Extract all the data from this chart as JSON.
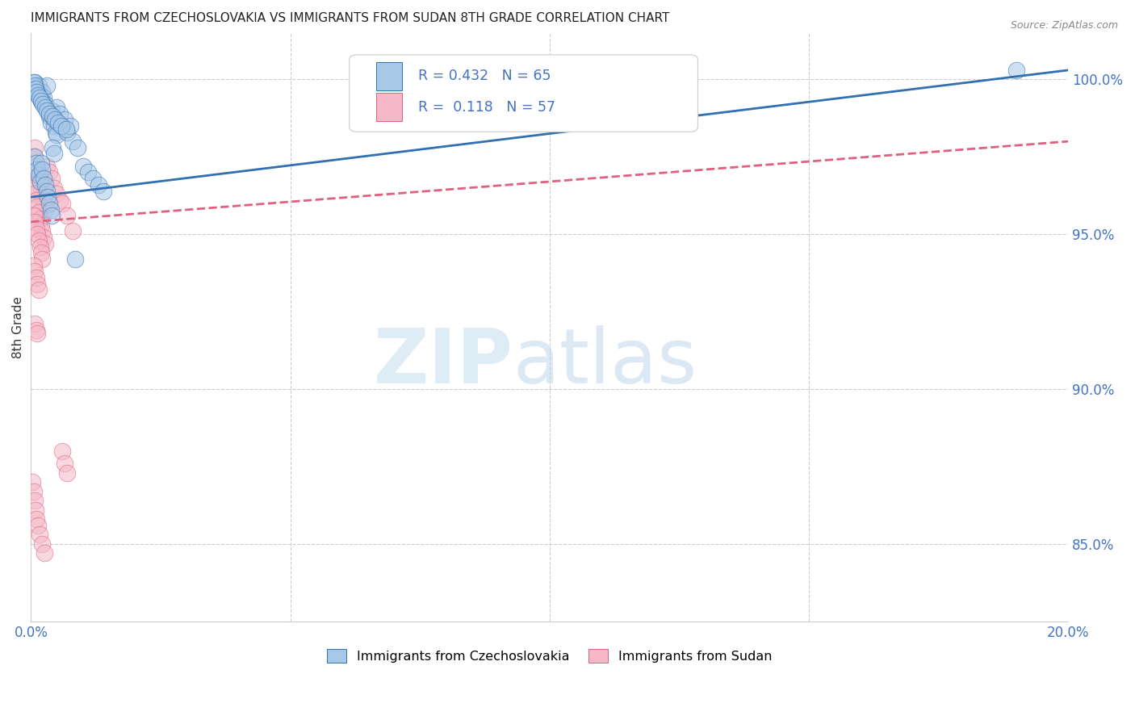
{
  "title": "IMMIGRANTS FROM CZECHOSLOVAKIA VS IMMIGRANTS FROM SUDAN 8TH GRADE CORRELATION CHART",
  "source": "Source: ZipAtlas.com",
  "ylabel": "8th Grade",
  "ylabel_right_ticks": [
    "100.0%",
    "95.0%",
    "90.0%",
    "85.0%"
  ],
  "ylabel_right_vals": [
    1.0,
    0.95,
    0.9,
    0.85
  ],
  "legend_label_blue": "Immigrants from Czechoslovakia",
  "legend_label_pink": "Immigrants from Sudan",
  "blue_color": "#a8c8e8",
  "pink_color": "#f4b8c8",
  "trendline_blue": "#3070b0",
  "trendline_pink": "#e06080",
  "xmin": 0.0,
  "xmax": 0.2,
  "ymin": 0.825,
  "ymax": 1.015,
  "blue_trend_x": [
    0.0,
    0.2
  ],
  "blue_trend_y": [
    0.962,
    1.003
  ],
  "pink_trend_x": [
    0.0,
    0.2
  ],
  "pink_trend_y": [
    0.954,
    0.98
  ],
  "blue_x": [
    0.0008,
    0.001,
    0.0012,
    0.0015,
    0.0018,
    0.002,
    0.0022,
    0.0025,
    0.0028,
    0.003,
    0.0032,
    0.0035,
    0.0038,
    0.004,
    0.0042,
    0.0045,
    0.0048,
    0.005,
    0.0008,
    0.001,
    0.0012,
    0.0015,
    0.0018,
    0.002,
    0.0022,
    0.0025,
    0.0028,
    0.003,
    0.0032,
    0.0035,
    0.0038,
    0.004,
    0.0042,
    0.0045,
    0.006,
    0.007,
    0.008,
    0.009,
    0.01,
    0.011,
    0.012,
    0.013,
    0.014,
    0.005,
    0.0055,
    0.0065,
    0.0075,
    0.0085,
    0.0005,
    0.0007,
    0.0009,
    0.0011,
    0.0013,
    0.0016,
    0.0019,
    0.0023,
    0.0027,
    0.0031,
    0.0036,
    0.0041,
    0.0046,
    0.0052,
    0.0058,
    0.0068,
    0.19
  ],
  "blue_y": [
    0.999,
    0.997,
    0.996,
    0.998,
    0.995,
    0.993,
    0.996,
    0.994,
    0.992,
    0.998,
    0.99,
    0.988,
    0.986,
    0.99,
    0.988,
    0.985,
    0.983,
    0.982,
    0.975,
    0.973,
    0.971,
    0.969,
    0.967,
    0.973,
    0.971,
    0.968,
    0.966,
    0.964,
    0.962,
    0.96,
    0.958,
    0.956,
    0.978,
    0.976,
    0.985,
    0.983,
    0.98,
    0.978,
    0.972,
    0.97,
    0.968,
    0.966,
    0.964,
    0.991,
    0.989,
    0.987,
    0.985,
    0.942,
    0.999,
    0.998,
    0.997,
    0.996,
    0.995,
    0.994,
    0.993,
    0.992,
    0.991,
    0.99,
    0.989,
    0.988,
    0.987,
    0.986,
    0.985,
    0.984,
    1.003
  ],
  "pink_x": [
    0.0005,
    0.0008,
    0.001,
    0.0012,
    0.0015,
    0.0018,
    0.002,
    0.0022,
    0.0025,
    0.0028,
    0.0005,
    0.0008,
    0.001,
    0.0012,
    0.0015,
    0.0018,
    0.002,
    0.0022,
    0.0025,
    0.0028,
    0.0005,
    0.0008,
    0.001,
    0.0012,
    0.0015,
    0.0018,
    0.002,
    0.0022,
    0.0005,
    0.0008,
    0.001,
    0.0012,
    0.0015,
    0.003,
    0.0035,
    0.004,
    0.0045,
    0.005,
    0.0055,
    0.006,
    0.007,
    0.008,
    0.006,
    0.0065,
    0.007,
    0.0008,
    0.001,
    0.0012,
    0.0003,
    0.0005,
    0.0007,
    0.0009,
    0.0011,
    0.0014,
    0.0017,
    0.0021,
    0.0026
  ],
  "pink_y": [
    0.975,
    0.978,
    0.972,
    0.97,
    0.968,
    0.966,
    0.964,
    0.962,
    0.96,
    0.958,
    0.965,
    0.963,
    0.961,
    0.959,
    0.957,
    0.955,
    0.953,
    0.951,
    0.949,
    0.947,
    0.956,
    0.954,
    0.952,
    0.95,
    0.948,
    0.946,
    0.944,
    0.942,
    0.94,
    0.938,
    0.936,
    0.934,
    0.932,
    0.972,
    0.97,
    0.968,
    0.965,
    0.963,
    0.961,
    0.96,
    0.956,
    0.951,
    0.88,
    0.876,
    0.873,
    0.921,
    0.919,
    0.918,
    0.87,
    0.867,
    0.864,
    0.861,
    0.858,
    0.856,
    0.853,
    0.85,
    0.847
  ]
}
